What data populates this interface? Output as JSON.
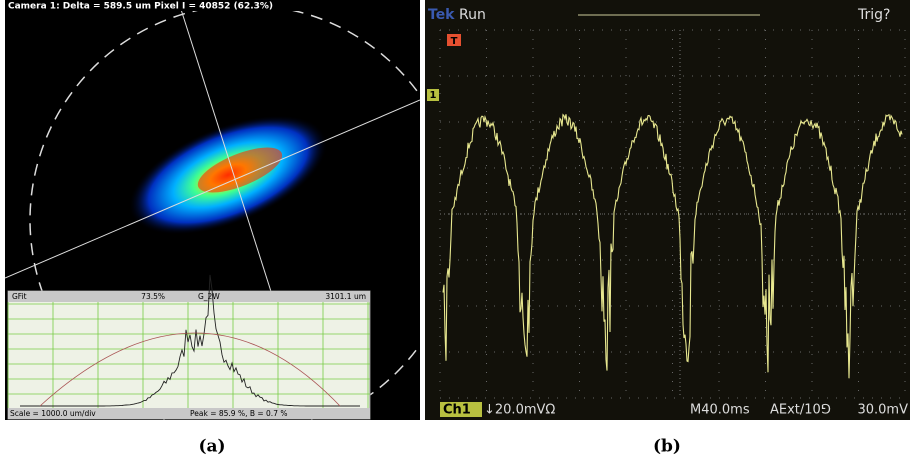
{
  "panel_a": {
    "header": "Camera 1: Delta = 589.5 um Pixel I = 40852 (62.3%)",
    "profile": {
      "fit_name": "GFit",
      "fit_value": "73.5%",
      "mode": "G_2W",
      "width": "3101.1 um",
      "scale": "Scale = 1000.0 um/div",
      "peak": "Peak = 85.9 %, B = 0.7 %"
    },
    "caption": "(a)"
  },
  "panel_b": {
    "brand": "Tek",
    "state": "Run",
    "trigger_status": "Trig?",
    "trigger_marker": "T",
    "channel_marker": "1",
    "channel": "Ch1",
    "scale": "↓20.0mVΩ",
    "timebase": "M40.0ms",
    "trigger_source": "AExt/10⅁",
    "trigger_level": "30.0mV",
    "caption": "(b)"
  }
}
